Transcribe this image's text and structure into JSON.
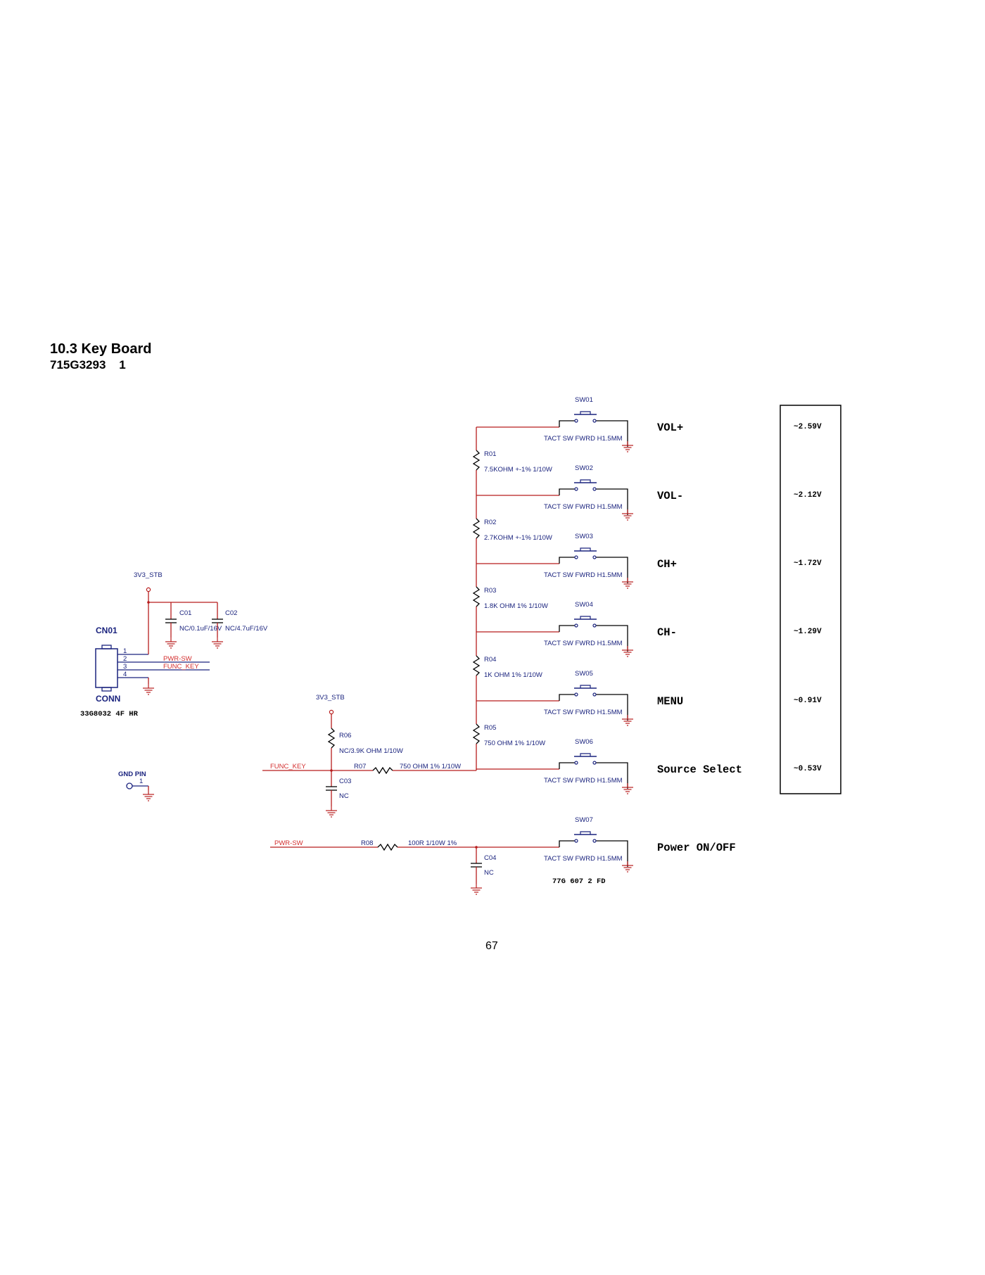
{
  "header": {
    "title": "10.3 Key Board",
    "subtitle": "715G3293    1"
  },
  "page_number": "67",
  "connector": {
    "ref": "CN01",
    "type": "CONN",
    "part": "33G8032 4F HR",
    "pins": [
      "1",
      "2",
      "3",
      "4"
    ]
  },
  "nets": {
    "stb_left": "3V3_STB",
    "stb_mid": "3V3_STB",
    "pwr_sw": "PWR-SW",
    "func_key": "FUNC_KEY",
    "func_key_in": "FUNC_KEY",
    "pwr_sw_in": "PWR-SW"
  },
  "gnd_pin": {
    "label": "GND PIN",
    "pin": "1"
  },
  "capacitors": [
    {
      "ref": "C01",
      "value": "NC/0.1uF/16V"
    },
    {
      "ref": "C02",
      "value": "NC/4.7uF/16V"
    },
    {
      "ref": "C03",
      "value": "NC"
    },
    {
      "ref": "C04",
      "value": "NC"
    }
  ],
  "resistors": [
    {
      "ref": "R01",
      "value": "7.5KOHM +-1% 1/10W"
    },
    {
      "ref": "R02",
      "value": "2.7KOHM +-1% 1/10W"
    },
    {
      "ref": "R03",
      "value": "1.8K OHM 1% 1/10W"
    },
    {
      "ref": "R04",
      "value": "1K OHM 1% 1/10W"
    },
    {
      "ref": "R05",
      "value": "750 OHM 1% 1/10W"
    },
    {
      "ref": "R06",
      "value": "NC/3.9K OHM 1/10W"
    },
    {
      "ref": "R07",
      "value": "750 OHM 1% 1/10W"
    },
    {
      "ref": "R08",
      "value": "100R 1/10W 1%"
    }
  ],
  "switches": [
    {
      "ref": "SW01",
      "desc": "TACT SW FWRD H1.5MM",
      "function": "VOL+",
      "voltage": "~2.59V"
    },
    {
      "ref": "SW02",
      "desc": "TACT SW FWRD H1.5MM",
      "function": "VOL-",
      "voltage": "~2.12V"
    },
    {
      "ref": "SW03",
      "desc": "TACT SW FWRD H1.5MM",
      "function": "CH+",
      "voltage": "~1.72V"
    },
    {
      "ref": "SW04",
      "desc": "TACT SW FWRD H1.5MM",
      "function": "CH-",
      "voltage": "~1.29V"
    },
    {
      "ref": "SW05",
      "desc": "TACT SW FWRD H1.5MM",
      "function": "MENU",
      "voltage": "~0.91V"
    },
    {
      "ref": "SW06",
      "desc": "TACT SW FWRD H1.5MM",
      "function": "Source Select",
      "voltage": "~0.53V"
    },
    {
      "ref": "SW07",
      "desc": "TACT SW FWRD H1.5MM",
      "function": "Power ON/OFF"
    }
  ],
  "sw07_part": "77G 607   2 FD"
}
